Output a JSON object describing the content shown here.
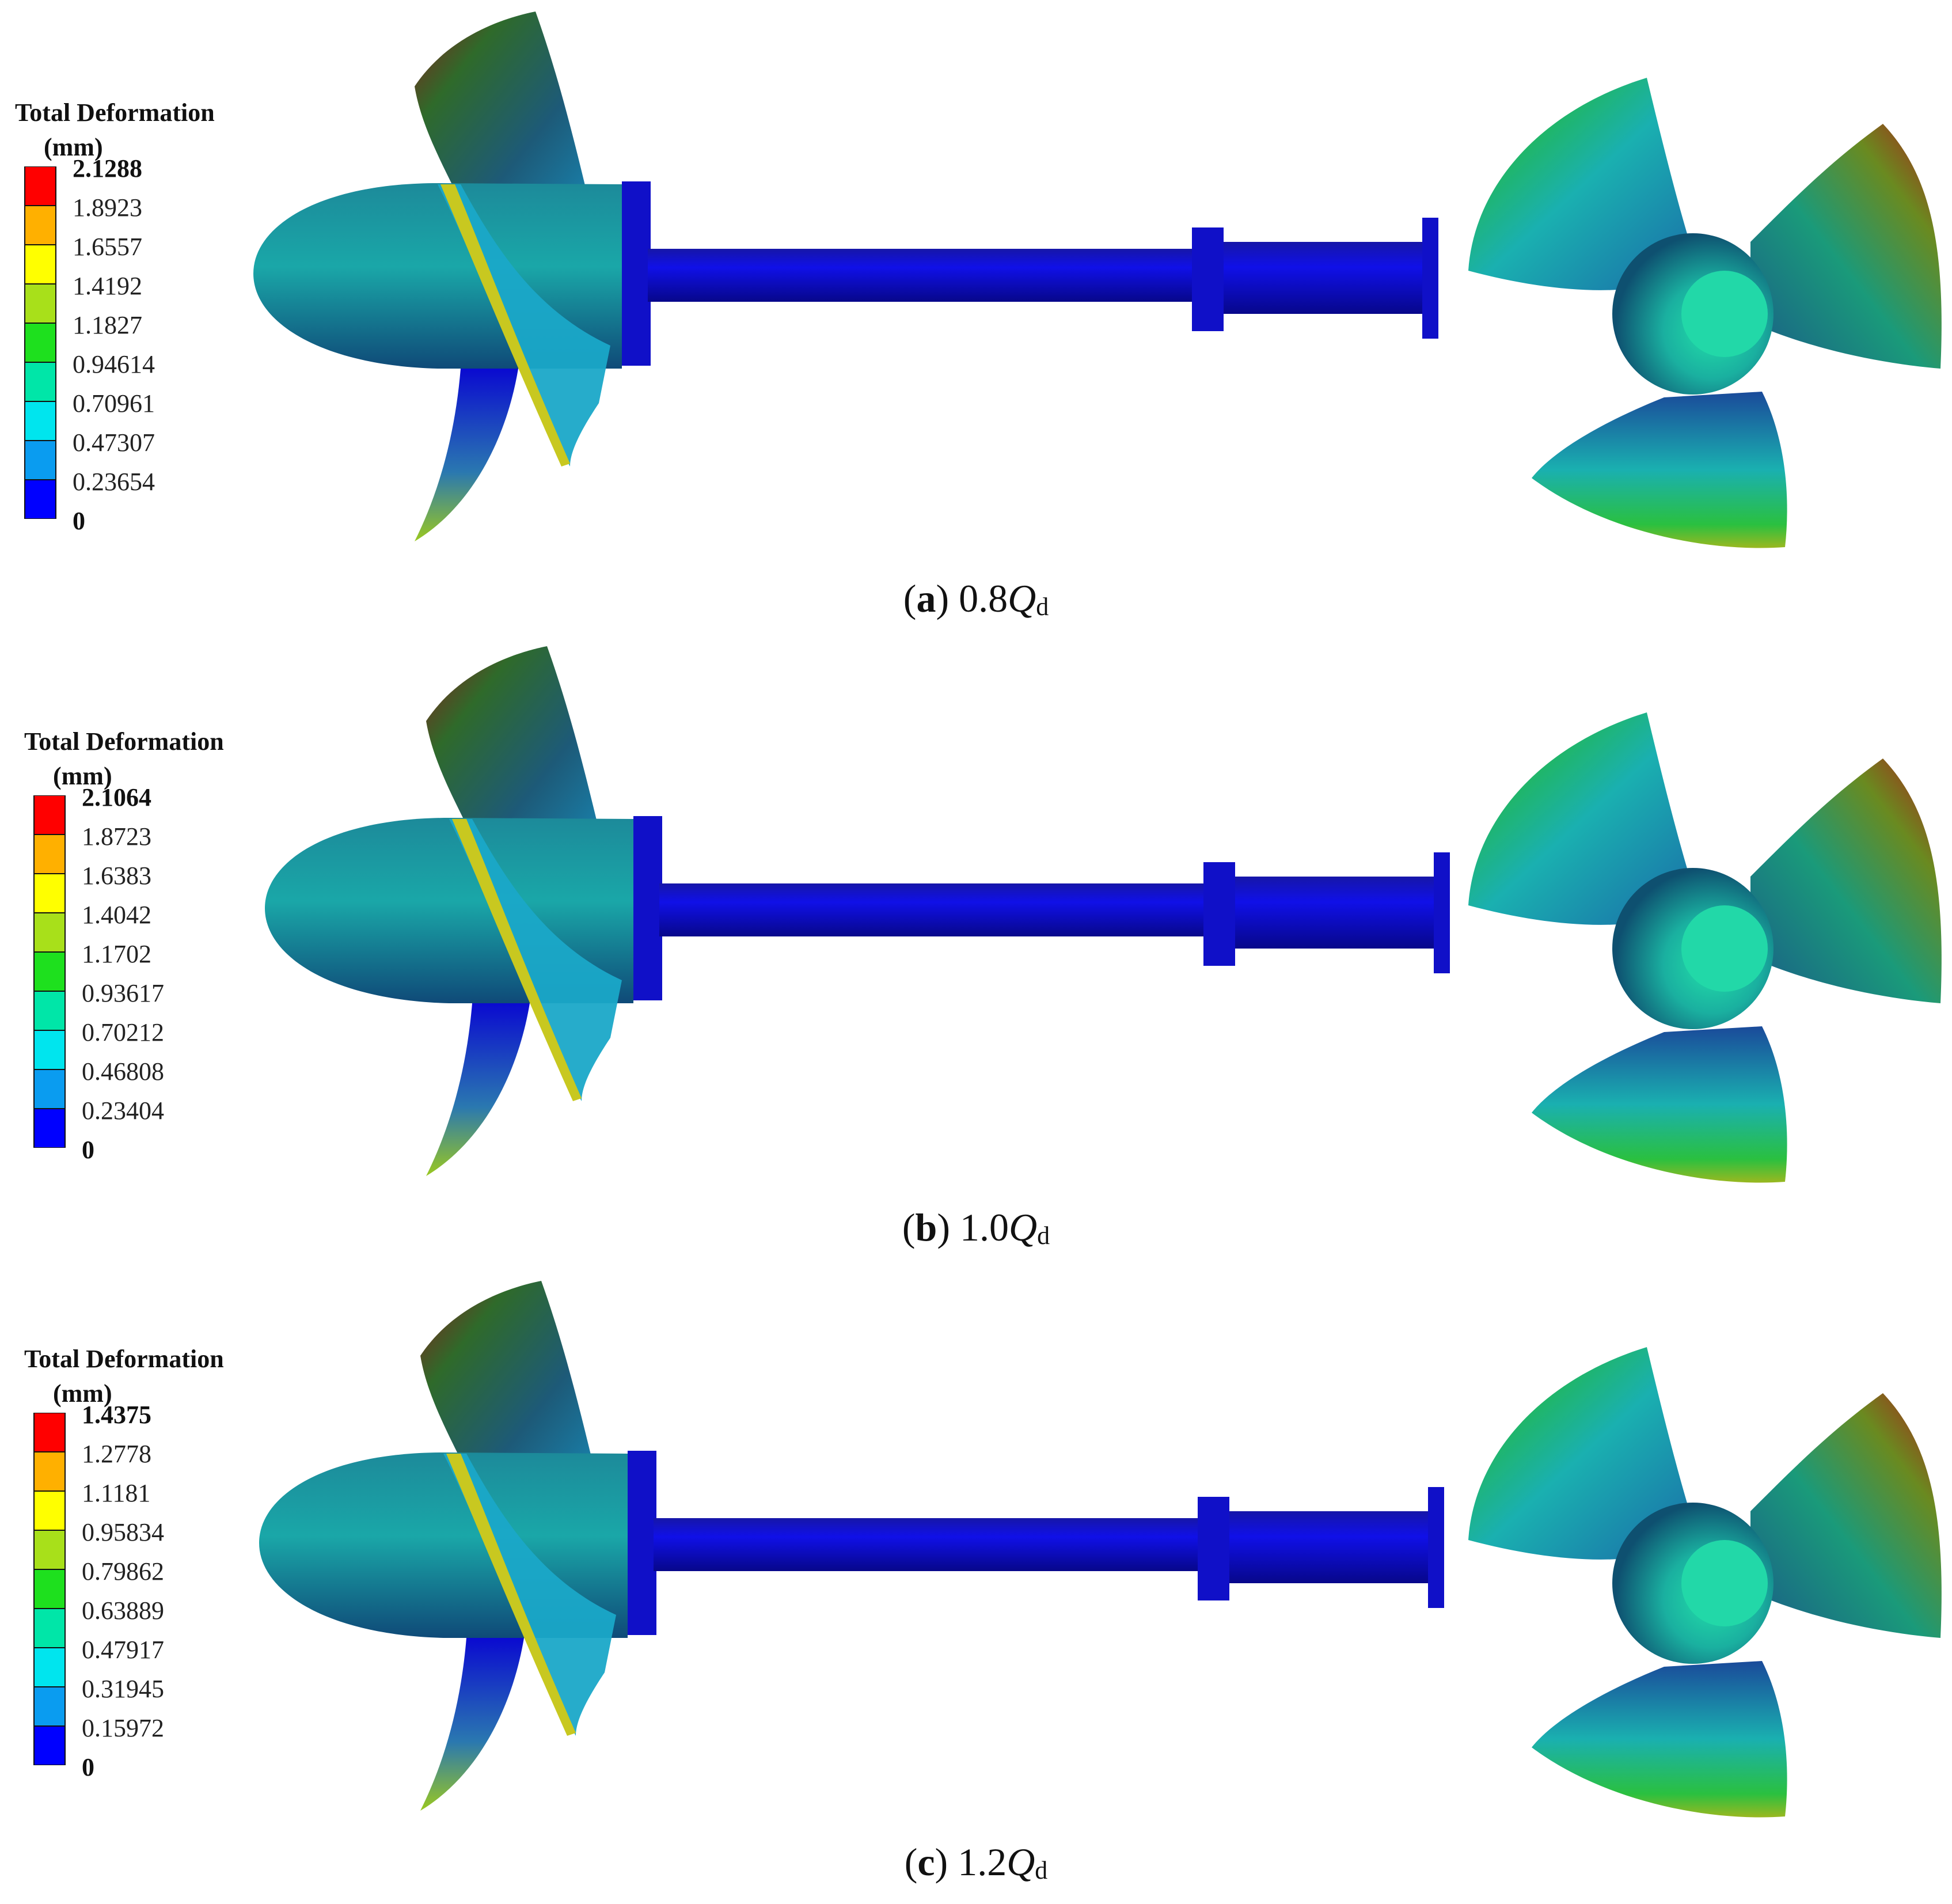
{
  "colors": {
    "scale": [
      "#0000ff",
      "#0a9cf0",
      "#00e5ee",
      "#00e6a8",
      "#1ee01e",
      "#a8e01a",
      "#ffff00",
      "#ffb000",
      "#ff0000"
    ],
    "shaft": "#0b0bd4",
    "hub": "#1aa8a0"
  },
  "panels": [
    {
      "legend": {
        "title": "Total Deformation",
        "unit": "(mm)",
        "ticks": [
          "2.1288",
          "1.8923",
          "1.6557",
          "1.4192",
          "1.1827",
          "0.94614",
          "0.70961",
          "0.47307",
          "0.23654",
          "0"
        ]
      },
      "caption": {
        "letter": "a",
        "value": "0.8",
        "q": "Q",
        "sub": "d"
      }
    },
    {
      "legend": {
        "title": "Total Deformation",
        "unit": "(mm)",
        "ticks": [
          "2.1064",
          "1.8723",
          "1.6383",
          "1.4042",
          "1.1702",
          "0.93617",
          "0.70212",
          "0.46808",
          "0.23404",
          "0"
        ]
      },
      "caption": {
        "letter": "b",
        "value": "1.0",
        "q": "Q",
        "sub": "d"
      }
    },
    {
      "legend": {
        "title": "Total Deformation",
        "unit": "(mm)",
        "ticks": [
          "1.4375",
          "1.2778",
          "1.1181",
          "0.95834",
          "0.79862",
          "0.63889",
          "0.47917",
          "0.31945",
          "0.15972",
          "0"
        ]
      },
      "caption": {
        "letter": "c",
        "value": "1.2",
        "q": "Q",
        "sub": "d"
      }
    }
  ]
}
